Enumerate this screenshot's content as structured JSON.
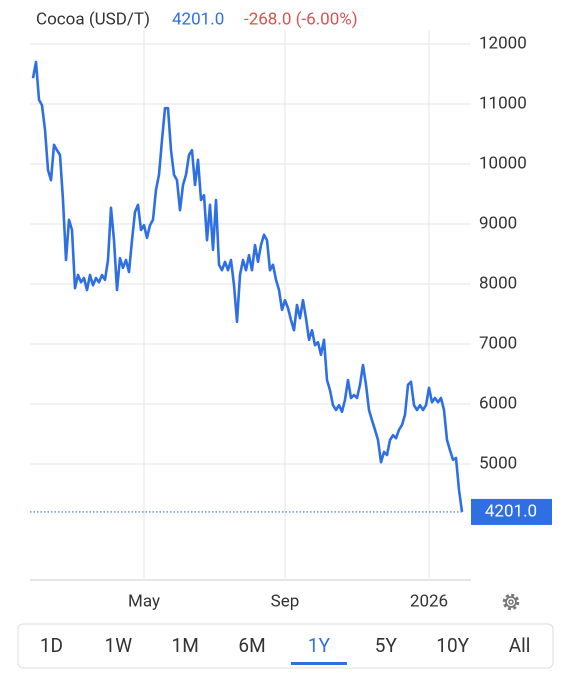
{
  "chart_data": {
    "type": "line",
    "title": "Cocoa (USD/T)",
    "price": "4201.0",
    "change": "-268.0 (-6.00%)",
    "color": "#2f6fe4",
    "values": [
      11430,
      11700,
      11070,
      10980,
      10570,
      9900,
      9730,
      10320,
      10230,
      10150,
      9400,
      8400,
      9070,
      8900,
      7930,
      8150,
      8030,
      8100,
      7900,
      8150,
      7980,
      8100,
      8030,
      8150,
      8070,
      8400,
      9270,
      8730,
      7900,
      8430,
      8270,
      8400,
      8200,
      8730,
      9200,
      9320,
      8900,
      8980,
      8770,
      8980,
      9070,
      9570,
      9820,
      10400,
      10930,
      10930,
      10230,
      9820,
      9730,
      9230,
      9650,
      9820,
      10150,
      10230,
      9650,
      10070,
      9400,
      9480,
      8730,
      9320,
      8570,
      9400,
      8320,
      8230,
      8370,
      8230,
      8400,
      7980,
      7370,
      8150,
      8400,
      8230,
      8480,
      8230,
      8650,
      8370,
      8650,
      8820,
      8730,
      8230,
      8320,
      8070,
      7900,
      7570,
      7730,
      7600,
      7400,
      7230,
      7650,
      7430,
      7730,
      7430,
      7070,
      7230,
      6980,
      7030,
      6820,
      7070,
      6400,
      6230,
      5980,
      5900,
      5980,
      5870,
      6070,
      6400,
      6100,
      6150,
      6100,
      6320,
      6650,
      6320,
      5900,
      5730,
      5570,
      5400,
      5030,
      5200,
      5150,
      5400,
      5480,
      5430,
      5570,
      5650,
      5820,
      6320,
      6370,
      5980,
      5900,
      5980,
      5900,
      5980,
      6270,
      6030,
      6100,
      6030,
      6100,
      5900,
      5400,
      5230,
      5070,
      5100,
      4570,
      4201
    ],
    "xlim": [
      0,
      146
    ],
    "xticks": [
      {
        "value": 37,
        "label": "May"
      },
      {
        "value": 84,
        "label": "Sep"
      },
      {
        "value": 132,
        "label": "2026"
      }
    ],
    "ylim": [
      3100,
      12000
    ],
    "yticks": [
      5000,
      6000,
      7000,
      8000,
      9000,
      10000,
      11000,
      12000
    ],
    "grid": true
  },
  "range_buttons": {
    "labels": [
      "1D",
      "1W",
      "1M",
      "6M",
      "1Y",
      "5Y",
      "10Y",
      "All"
    ],
    "selected": 4
  }
}
